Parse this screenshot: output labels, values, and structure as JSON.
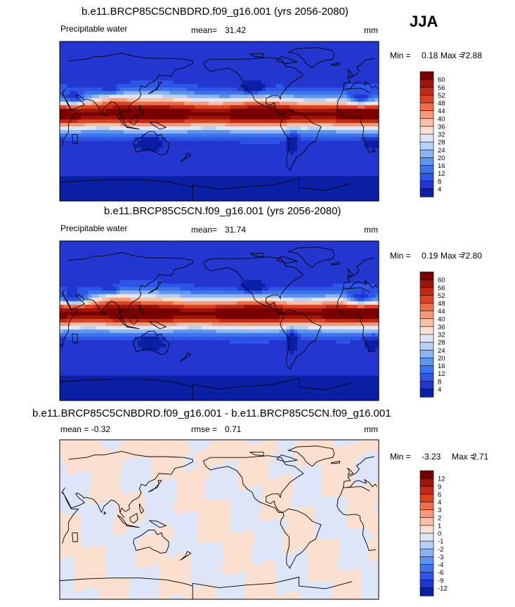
{
  "season": "JJA",
  "colors": {
    "pw": [
      "#0a1fa3",
      "#2336cf",
      "#2d55e6",
      "#3b74ec",
      "#5c94f0",
      "#8cb3f2",
      "#b9d0f5",
      "#dce6f8",
      "#fbe0cf",
      "#f8c1a5",
      "#f49a76",
      "#ec6d46",
      "#db4422",
      "#c02a12",
      "#9f1408",
      "#7a0000"
    ],
    "diff": [
      "#0a1fa3",
      "#2336cf",
      "#2d55e6",
      "#3b74ec",
      "#5c94f0",
      "#8cb3f2",
      "#b9d0f5",
      "#dce6f8",
      "#fbe0cf",
      "#f8c1a5",
      "#f49a76",
      "#ec6d46",
      "#db4422",
      "#c02a12",
      "#9f1408",
      "#7a0000"
    ],
    "land": "#000000"
  },
  "chart_data": [
    {
      "type": "heatmap",
      "title": "b.e11.BRCP85C5CNBDRD.f09_g16.001 (yrs 2056-2080)",
      "left_label": "Precipitable water",
      "mean_label": "mean=",
      "mean": "31.42",
      "units": "mm",
      "min_label": "Min =",
      "min": "0.18",
      "max_label": "Max =",
      "max": "72.88",
      "colorbar_ticks": [
        "60",
        "56",
        "52",
        "48",
        "44",
        "40",
        "36",
        "32",
        "28",
        "24",
        "20",
        "16",
        "12",
        "8",
        "4"
      ],
      "field": "pw",
      "variant": 1
    },
    {
      "type": "heatmap",
      "title": "b.e11.BRCP85C5CN.f09_g16.001 (yrs 2056-2080)",
      "left_label": "Precipitable water",
      "mean_label": "mean=",
      "mean": "31.74",
      "units": "mm",
      "min_label": "Min =",
      "min": "0.19",
      "max_label": "Max =",
      "max": "72.80",
      "colorbar_ticks": [
        "60",
        "56",
        "52",
        "48",
        "44",
        "40",
        "36",
        "32",
        "28",
        "24",
        "20",
        "16",
        "12",
        "8",
        "4"
      ],
      "field": "pw",
      "variant": 2
    },
    {
      "type": "heatmap",
      "title": "b.e11.BRCP85C5CNBDRD.f09_g16.001 - b.e11.BRCP85C5CN.f09_g16.001",
      "left_label": "mean =  -0.32",
      "mean_label": "rmse =",
      "mean": "0.71",
      "units": "mm",
      "min_label": "Min =",
      "min": "-3.23",
      "max_label": "Max =",
      "max": "2.71",
      "colorbar_ticks": [
        "12",
        "9",
        "6",
        "4",
        "3",
        "2",
        "1",
        "0",
        "-1",
        "-2",
        "-3",
        "-4",
        "-6",
        "-9",
        "-12"
      ],
      "field": "diff",
      "variant": 3
    }
  ]
}
